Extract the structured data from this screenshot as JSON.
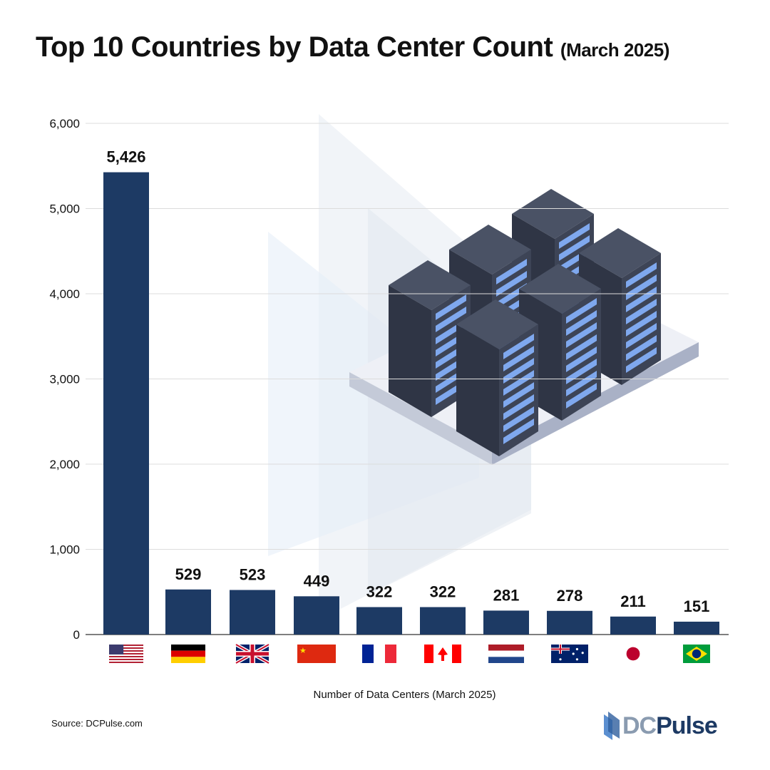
{
  "title": "Top 10 Countries by Data Center Count",
  "title_suffix": "(March 2025)",
  "source": "Source: DCPulse.com",
  "logo": {
    "part1": "DC",
    "part2": "Pulse"
  },
  "chart_data": {
    "type": "bar",
    "title": "Top 10 Countries by Data Center Count (March 2025)",
    "xlabel": "Number of Data Centers (March 2025)",
    "ylabel": "",
    "ylim": [
      0,
      6000
    ],
    "yticks": [
      "0",
      "1,000",
      "2,000",
      "3,000",
      "4,000",
      "5,000",
      "6,000"
    ],
    "ytick_values": [
      0,
      1000,
      2000,
      3000,
      4000,
      5000,
      6000
    ],
    "grid": true,
    "categories": [
      "flag-us",
      "flag-germany",
      "flag-uk",
      "flag-china",
      "flag-france",
      "flag-canada",
      "flag-netherlands",
      "flag-australia",
      "flag-japan",
      "flag-brazil"
    ],
    "values": [
      5426,
      529,
      523,
      449,
      322,
      322,
      281,
      278,
      211,
      151
    ],
    "value_labels": [
      "5,426",
      "529",
      "523",
      "449",
      "322",
      "322",
      "281",
      "278",
      "211",
      "151"
    ],
    "bar_color": "#1d3a64"
  }
}
